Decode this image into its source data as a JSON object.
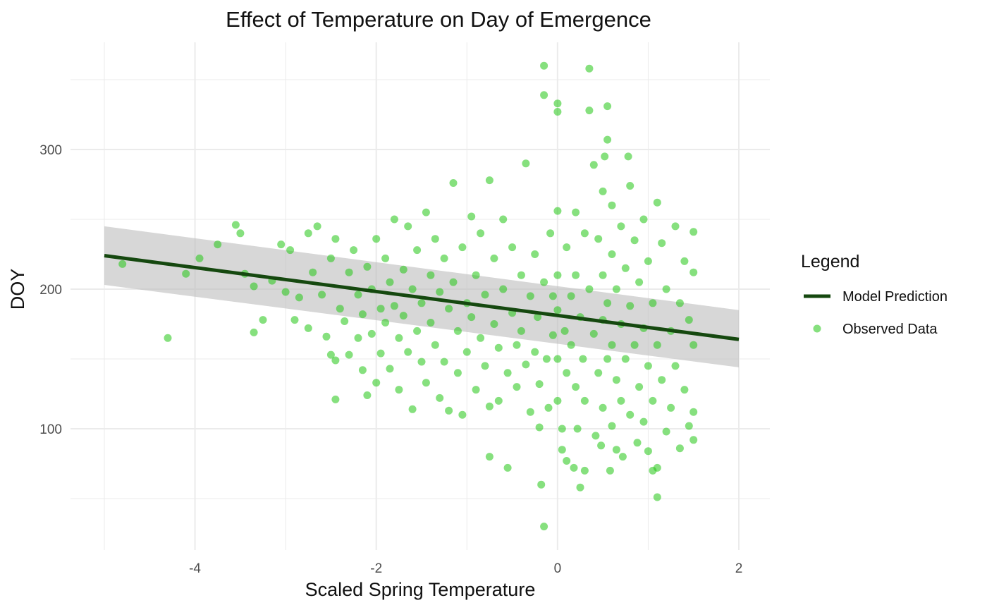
{
  "chart_data": {
    "type": "scatter",
    "title": "Effect of Temperature on Day of Emergence",
    "xlabel": "Scaled Spring Temperature",
    "ylabel": "DOY",
    "xlim": [
      -5.0,
      2.0
    ],
    "ylim": [
      20,
      362
    ],
    "x_ticks": [
      -4,
      -2,
      0,
      2
    ],
    "x_tick_labels": [
      "-4",
      "-2",
      "0",
      "2"
    ],
    "y_ticks": [
      100,
      200,
      300
    ],
    "y_tick_labels": [
      "100",
      "200",
      "300"
    ],
    "grid": true,
    "legend": {
      "title": "Legend",
      "position": "right",
      "entries": [
        {
          "label": "Model Prediction",
          "kind": "line",
          "color": "#15480f"
        },
        {
          "label": "Observed Data",
          "kind": "point",
          "color": "#22c714"
        }
      ]
    },
    "model_line": {
      "name": "Model Prediction",
      "color": "#15480f",
      "x": [
        -5.0,
        2.0
      ],
      "y": [
        224,
        164
      ],
      "ci_lower": [
        203,
        144
      ],
      "ci_upper": [
        245,
        185
      ]
    },
    "observed": {
      "name": "Observed Data",
      "color": "#22c714",
      "points": [
        [
          -4.8,
          218
        ],
        [
          -4.3,
          165
        ],
        [
          -4.1,
          211
        ],
        [
          -3.95,
          222
        ],
        [
          -3.75,
          232
        ],
        [
          -3.55,
          246
        ],
        [
          -3.5,
          240
        ],
        [
          -3.45,
          211
        ],
        [
          -3.35,
          202
        ],
        [
          -3.35,
          169
        ],
        [
          -3.25,
          178
        ],
        [
          -3.15,
          206
        ],
        [
          -3.05,
          232
        ],
        [
          -3.0,
          198
        ],
        [
          -2.95,
          228
        ],
        [
          -2.9,
          178
        ],
        [
          -2.85,
          194
        ],
        [
          -2.75,
          172
        ],
        [
          -2.75,
          240
        ],
        [
          -2.7,
          212
        ],
        [
          -2.65,
          245
        ],
        [
          -2.6,
          196
        ],
        [
          -2.55,
          166
        ],
        [
          -2.5,
          222
        ],
        [
          -2.5,
          153
        ],
        [
          -2.45,
          236
        ],
        [
          -2.45,
          149
        ],
        [
          -2.45,
          121
        ],
        [
          -2.4,
          186
        ],
        [
          -2.35,
          177
        ],
        [
          -2.3,
          212
        ],
        [
          -2.3,
          153
        ],
        [
          -2.25,
          228
        ],
        [
          -2.2,
          196
        ],
        [
          -2.2,
          165
        ],
        [
          -2.15,
          182
        ],
        [
          -2.15,
          142
        ],
        [
          -2.1,
          216
        ],
        [
          -2.1,
          124
        ],
        [
          -2.05,
          200
        ],
        [
          -2.05,
          168
        ],
        [
          -2.0,
          236
        ],
        [
          -2.0,
          133
        ],
        [
          -1.95,
          186
        ],
        [
          -1.95,
          154
        ],
        [
          -1.9,
          222
        ],
        [
          -1.9,
          176
        ],
        [
          -1.85,
          205
        ],
        [
          -1.85,
          143
        ],
        [
          -1.8,
          250
        ],
        [
          -1.8,
          188
        ],
        [
          -1.75,
          165
        ],
        [
          -1.75,
          128
        ],
        [
          -1.7,
          214
        ],
        [
          -1.7,
          181
        ],
        [
          -1.65,
          245
        ],
        [
          -1.65,
          155
        ],
        [
          -1.6,
          200
        ],
        [
          -1.6,
          114
        ],
        [
          -1.55,
          228
        ],
        [
          -1.55,
          170
        ],
        [
          -1.5,
          190
        ],
        [
          -1.5,
          148
        ],
        [
          -1.45,
          255
        ],
        [
          -1.45,
          133
        ],
        [
          -1.4,
          210
        ],
        [
          -1.4,
          176
        ],
        [
          -1.35,
          236
        ],
        [
          -1.35,
          160
        ],
        [
          -1.3,
          198
        ],
        [
          -1.3,
          122
        ],
        [
          -1.25,
          222
        ],
        [
          -1.25,
          148
        ],
        [
          -1.2,
          186
        ],
        [
          -1.2,
          113
        ],
        [
          -1.15,
          276
        ],
        [
          -1.15,
          205
        ],
        [
          -1.1,
          170
        ],
        [
          -1.1,
          140
        ],
        [
          -1.05,
          230
        ],
        [
          -1.05,
          110
        ],
        [
          -1.0,
          190
        ],
        [
          -1.0,
          155
        ],
        [
          -0.95,
          252
        ],
        [
          -0.95,
          180
        ],
        [
          -0.9,
          210
        ],
        [
          -0.9,
          128
        ],
        [
          -0.85,
          165
        ],
        [
          -0.85,
          240
        ],
        [
          -0.8,
          196
        ],
        [
          -0.8,
          145
        ],
        [
          -0.75,
          278
        ],
        [
          -0.75,
          116
        ],
        [
          -0.75,
          80
        ],
        [
          -0.7,
          222
        ],
        [
          -0.7,
          175
        ],
        [
          -0.65,
          158
        ],
        [
          -0.65,
          120
        ],
        [
          -0.6,
          250
        ],
        [
          -0.6,
          200
        ],
        [
          -0.55,
          140
        ],
        [
          -0.55,
          72
        ],
        [
          -0.5,
          230
        ],
        [
          -0.5,
          183
        ],
        [
          -0.45,
          160
        ],
        [
          -0.45,
          130
        ],
        [
          -0.4,
          210
        ],
        [
          -0.4,
          170
        ],
        [
          -0.35,
          290
        ],
        [
          -0.35,
          146
        ],
        [
          -0.3,
          195
        ],
        [
          -0.3,
          112
        ],
        [
          -0.25,
          225
        ],
        [
          -0.25,
          155
        ],
        [
          -0.22,
          180
        ],
        [
          -0.2,
          132
        ],
        [
          -0.2,
          101
        ],
        [
          -0.18,
          60
        ],
        [
          -0.15,
          360
        ],
        [
          -0.15,
          339
        ],
        [
          -0.15,
          205
        ],
        [
          -0.15,
          30
        ],
        [
          -0.12,
          150
        ],
        [
          -0.1,
          115
        ],
        [
          -0.08,
          240
        ],
        [
          -0.05,
          195
        ],
        [
          -0.05,
          167
        ],
        [
          0.0,
          333
        ],
        [
          0.0,
          327
        ],
        [
          0.0,
          256
        ],
        [
          0.0,
          210
        ],
        [
          0.0,
          185
        ],
        [
          0.0,
          150
        ],
        [
          0.0,
          120
        ],
        [
          0.05,
          100
        ],
        [
          0.05,
          85
        ],
        [
          0.08,
          170
        ],
        [
          0.1,
          230
        ],
        [
          0.1,
          140
        ],
        [
          0.1,
          77
        ],
        [
          0.15,
          195
        ],
        [
          0.15,
          160
        ],
        [
          0.18,
          72
        ],
        [
          0.2,
          255
        ],
        [
          0.2,
          210
        ],
        [
          0.2,
          130
        ],
        [
          0.22,
          100
        ],
        [
          0.25,
          58
        ],
        [
          0.25,
          180
        ],
        [
          0.28,
          150
        ],
        [
          0.3,
          240
        ],
        [
          0.3,
          120
        ],
        [
          0.3,
          70
        ],
        [
          0.35,
          358
        ],
        [
          0.35,
          328
        ],
        [
          0.35,
          200
        ],
        [
          0.4,
          289
        ],
        [
          0.4,
          168
        ],
        [
          0.42,
          95
        ],
        [
          0.45,
          236
        ],
        [
          0.45,
          140
        ],
        [
          0.48,
          88
        ],
        [
          0.5,
          270
        ],
        [
          0.5,
          210
        ],
        [
          0.5,
          178
        ],
        [
          0.5,
          115
        ],
        [
          0.52,
          295
        ],
        [
          0.55,
          331
        ],
        [
          0.55,
          307
        ],
        [
          0.55,
          190
        ],
        [
          0.55,
          150
        ],
        [
          0.58,
          70
        ],
        [
          0.6,
          260
        ],
        [
          0.6,
          225
        ],
        [
          0.6,
          160
        ],
        [
          0.6,
          102
        ],
        [
          0.65,
          200
        ],
        [
          0.65,
          135
        ],
        [
          0.65,
          85
        ],
        [
          0.7,
          245
        ],
        [
          0.7,
          175
        ],
        [
          0.7,
          120
        ],
        [
          0.72,
          80
        ],
        [
          0.75,
          215
        ],
        [
          0.75,
          150
        ],
        [
          0.78,
          295
        ],
        [
          0.8,
          274
        ],
        [
          0.8,
          188
        ],
        [
          0.8,
          110
        ],
        [
          0.85,
          235
        ],
        [
          0.85,
          160
        ],
        [
          0.88,
          90
        ],
        [
          0.9,
          205
        ],
        [
          0.9,
          130
        ],
        [
          0.95,
          250
        ],
        [
          0.95,
          172
        ],
        [
          0.95,
          105
        ],
        [
          1.0,
          220
        ],
        [
          1.0,
          145
        ],
        [
          1.0,
          84
        ],
        [
          1.05,
          190
        ],
        [
          1.05,
          120
        ],
        [
          1.05,
          70
        ],
        [
          1.1,
          262
        ],
        [
          1.1,
          160
        ],
        [
          1.1,
          51
        ],
        [
          1.1,
          72
        ],
        [
          1.15,
          233
        ],
        [
          1.15,
          135
        ],
        [
          1.2,
          200
        ],
        [
          1.2,
          98
        ],
        [
          1.25,
          170
        ],
        [
          1.25,
          115
        ],
        [
          1.3,
          245
        ],
        [
          1.3,
          145
        ],
        [
          1.35,
          190
        ],
        [
          1.35,
          86
        ],
        [
          1.4,
          220
        ],
        [
          1.4,
          128
        ],
        [
          1.45,
          178
        ],
        [
          1.45,
          102
        ],
        [
          1.5,
          241
        ],
        [
          1.5,
          212
        ],
        [
          1.5,
          160
        ],
        [
          1.5,
          112
        ],
        [
          1.5,
          92
        ]
      ]
    }
  }
}
